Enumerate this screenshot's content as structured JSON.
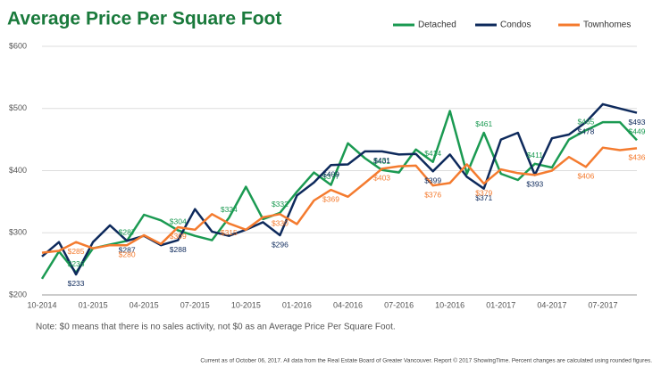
{
  "chart_data": {
    "type": "line",
    "title": "Average Price Per Square Foot",
    "note": "Note: $0 means that there is no sales activity, not $0 as an Average Price Per Square Foot.",
    "footer": "Current as of October 06, 2017. All data from the Real Estate Board of Greater Vancouver. Report © 2017 ShowingTime. Percent changes are calculated using rounded figures.",
    "legend": "top-right",
    "grid": true,
    "categories": [
      "10-2014",
      null,
      null,
      "01-2015",
      null,
      null,
      "04-2015",
      null,
      null,
      "07-2015",
      null,
      null,
      "10-2015",
      null,
      null,
      "01-2016",
      null,
      null,
      "04-2016",
      null,
      null,
      "07-2016",
      null,
      null,
      "10-2016",
      null,
      null,
      "01-2017",
      null,
      null,
      "04-2017",
      null,
      null,
      "07-2017",
      null,
      null
    ],
    "ylim": [
      200,
      600
    ],
    "yticks": [
      {
        "value": 200,
        "label": "$200"
      },
      {
        "value": 300,
        "label": "$300"
      },
      {
        "value": 400,
        "label": "$400"
      },
      {
        "value": 500,
        "label": "$500"
      },
      {
        "value": 600,
        "label": "$600"
      }
    ],
    "series": [
      {
        "name": "Detached",
        "color": "#1b9a52",
        "values": [
          226,
          270,
          236,
          275,
          281,
          287,
          329,
          320,
          304,
          295,
          288,
          324,
          374,
          322,
          332,
          366,
          397,
          377,
          444,
          420,
          401,
          397,
          434,
          414,
          496,
          395,
          461,
          395,
          385,
          411,
          405,
          450,
          465,
          478,
          478,
          449
        ],
        "value_labels": [
          null,
          null,
          "$236",
          null,
          null,
          "$287",
          null,
          null,
          "$304",
          null,
          null,
          "$324",
          null,
          null,
          "$332",
          null,
          null,
          "$377",
          null,
          null,
          "$401",
          null,
          null,
          "$414",
          null,
          null,
          "$461",
          null,
          null,
          "$411",
          null,
          null,
          "$465",
          null,
          null,
          "$449"
        ]
      },
      {
        "name": "Condos",
        "color": "#0e2a5c",
        "values": [
          262,
          285,
          233,
          285,
          312,
          287,
          295,
          280,
          288,
          338,
          302,
          295,
          305,
          317,
          296,
          360,
          381,
          409,
          410,
          431,
          431,
          426,
          427,
          399,
          426,
          390,
          371,
          450,
          461,
          393,
          452,
          458,
          478,
          507,
          500,
          493
        ],
        "value_labels": [
          null,
          null,
          "$233",
          null,
          null,
          "$287",
          null,
          null,
          "$288",
          null,
          null,
          null,
          null,
          null,
          "$296",
          null,
          null,
          "$409",
          null,
          null,
          "$431",
          null,
          null,
          "$399",
          null,
          null,
          "$371",
          null,
          null,
          "$393",
          null,
          null,
          "$478",
          null,
          null,
          "$493"
        ]
      },
      {
        "name": "Townhomes",
        "color": "#f47b2f",
        "values": [
          268,
          271,
          285,
          275,
          280,
          280,
          296,
          282,
          309,
          305,
          330,
          315,
          305,
          325,
          330,
          314,
          352,
          369,
          358,
          380,
          403,
          407,
          408,
          376,
          380,
          410,
          379,
          402,
          396,
          393,
          400,
          422,
          406,
          437,
          433,
          436
        ],
        "value_labels": [
          null,
          null,
          "$285",
          null,
          null,
          "$280",
          null,
          null,
          "$309",
          null,
          null,
          "$315",
          null,
          null,
          "$330",
          null,
          null,
          "$369",
          null,
          null,
          "$403",
          null,
          null,
          "$376",
          null,
          null,
          "$379",
          null,
          null,
          null,
          null,
          null,
          "$406",
          null,
          null,
          "$436"
        ]
      }
    ]
  }
}
